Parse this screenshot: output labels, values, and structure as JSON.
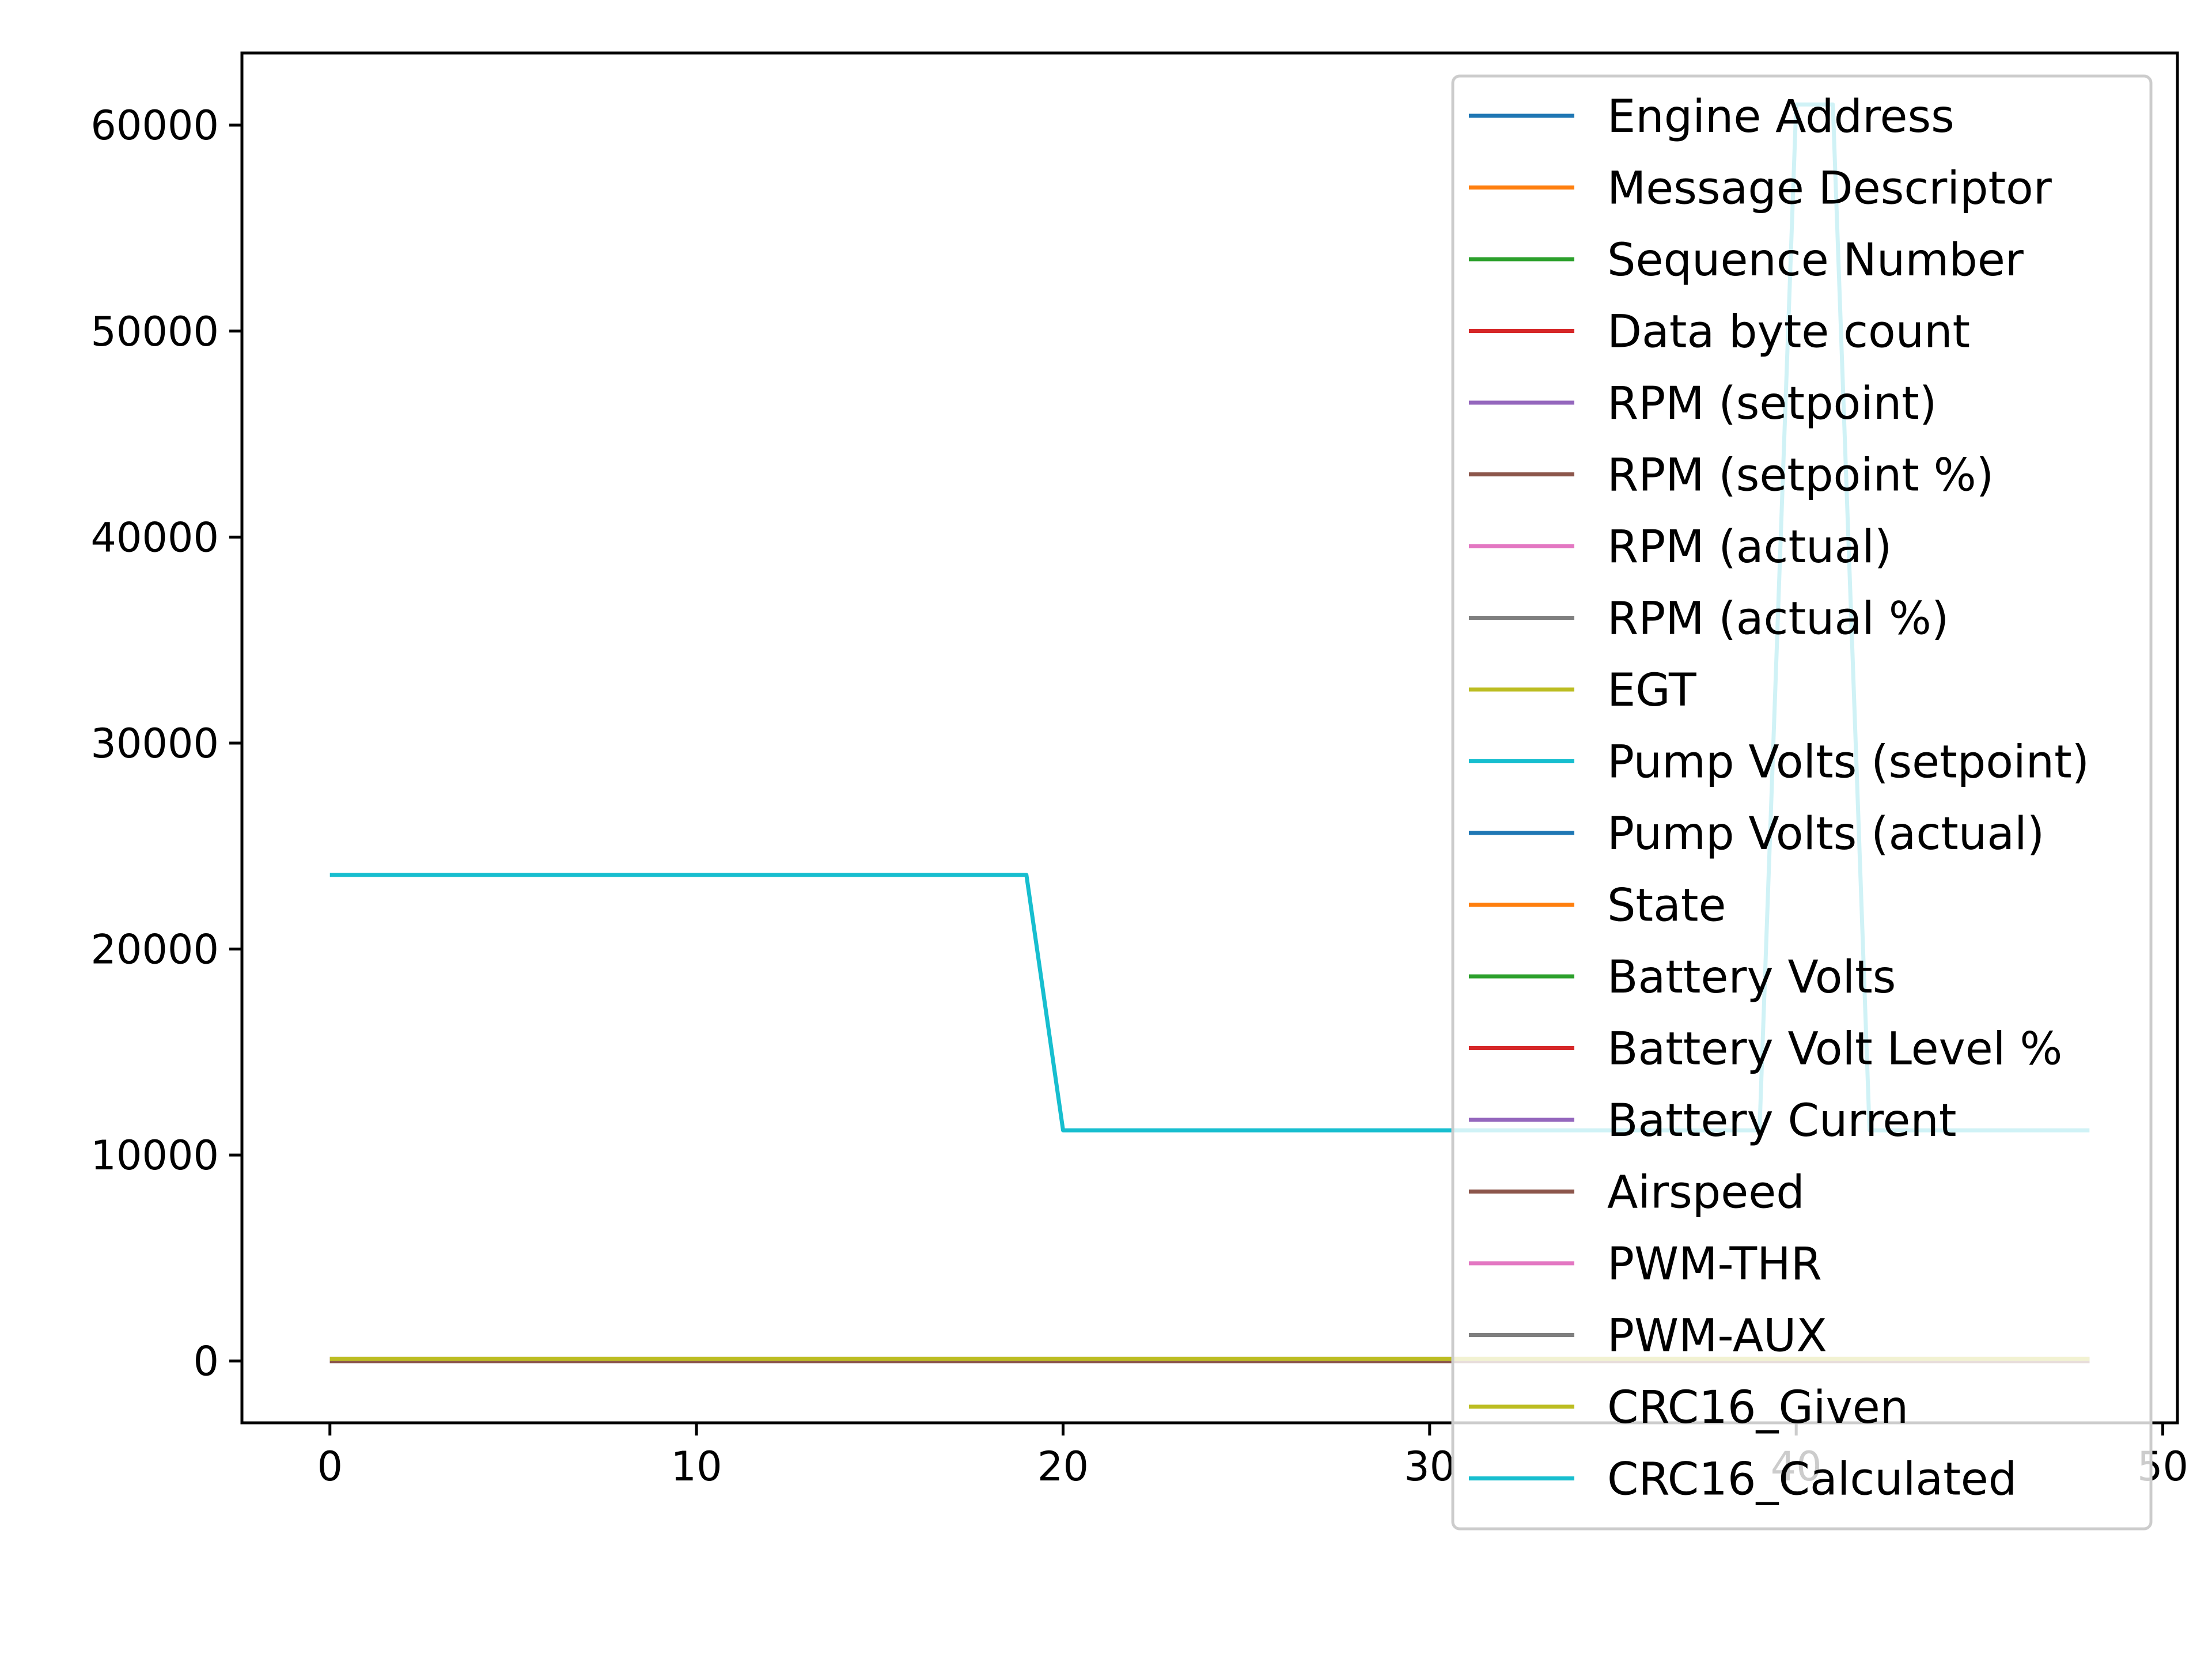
{
  "chart_data": {
    "type": "line",
    "title": "",
    "xlabel": "",
    "ylabel": "",
    "xlim": [
      -2.4,
      50.4
    ],
    "ylim": [
      -3000,
      63500
    ],
    "xticks": [
      0,
      10,
      20,
      30,
      40,
      50
    ],
    "yticks": [
      0,
      10000,
      20000,
      30000,
      40000,
      50000,
      60000
    ],
    "xtick_labels": [
      "0",
      "10",
      "20",
      "30",
      "40",
      "50"
    ],
    "ytick_labels": [
      "0",
      "10000",
      "20000",
      "30000",
      "40000",
      "50000",
      "60000"
    ],
    "grid": false,
    "legend_position": "upper right",
    "series": [
      {
        "name": "Engine Address",
        "color": "#1f77b4",
        "x": [
          0,
          48
        ],
        "y": [
          1,
          1
        ]
      },
      {
        "name": "Message Descriptor",
        "color": "#ff7f0e",
        "x": [
          0,
          48
        ],
        "y": [
          1,
          1
        ]
      },
      {
        "name": "Sequence Number",
        "color": "#2ca02c",
        "x": [
          0,
          48
        ],
        "y": [
          0,
          48
        ]
      },
      {
        "name": "Data byte count",
        "color": "#d62728",
        "x": [
          0,
          48
        ],
        "y": [
          30,
          30
        ]
      },
      {
        "name": "RPM (setpoint)",
        "color": "#9467bd",
        "x": [
          0,
          48
        ],
        "y": [
          0,
          0
        ]
      },
      {
        "name": "RPM (setpoint %)",
        "color": "#8c564b",
        "x": [
          0,
          48
        ],
        "y": [
          0,
          0
        ]
      },
      {
        "name": "RPM (actual)",
        "color": "#e377c2",
        "x": [
          0,
          48
        ],
        "y": [
          0,
          0
        ]
      },
      {
        "name": "RPM (actual %)",
        "color": "#7f7f7f",
        "x": [
          0,
          48
        ],
        "y": [
          0,
          0
        ]
      },
      {
        "name": "EGT",
        "color": "#bcbd22",
        "x": [
          0,
          48
        ],
        "y": [
          20,
          20
        ]
      },
      {
        "name": "Pump Volts (setpoint)",
        "color": "#17becf",
        "x": [
          0,
          48
        ],
        "y": [
          0,
          0
        ]
      },
      {
        "name": "Pump Volts (actual)",
        "color": "#1f77b4",
        "x": [
          0,
          48
        ],
        "y": [
          0,
          0
        ]
      },
      {
        "name": "State",
        "color": "#ff7f0e",
        "x": [
          0,
          48
        ],
        "y": [
          1,
          1
        ]
      },
      {
        "name": "Battery Volts",
        "color": "#2ca02c",
        "x": [
          0,
          48
        ],
        "y": [
          12,
          12
        ]
      },
      {
        "name": "Battery Volt Level %",
        "color": "#d62728",
        "x": [
          0,
          48
        ],
        "y": [
          100,
          100
        ]
      },
      {
        "name": "Battery Current",
        "color": "#9467bd",
        "x": [
          0,
          48
        ],
        "y": [
          0,
          0
        ]
      },
      {
        "name": "Airspeed",
        "color": "#8c564b",
        "x": [
          0,
          48
        ],
        "y": [
          0,
          0
        ]
      },
      {
        "name": "PWM-THR",
        "color": "#e377c2",
        "x": [
          0,
          48
        ],
        "y": [
          100,
          100
        ]
      },
      {
        "name": "PWM-AUX",
        "color": "#7f7f7f",
        "x": [
          0,
          48
        ],
        "y": [
          100,
          100
        ]
      },
      {
        "name": "CRC16_Given",
        "color": "#bcbd22",
        "x": [
          0,
          48
        ],
        "y": [
          100,
          100
        ]
      },
      {
        "name": "CRC16_Calculated",
        "color": "#17becf",
        "x": [
          0,
          19,
          20,
          39,
          40,
          41,
          42,
          48
        ],
        "y": [
          23600,
          23600,
          11200,
          11200,
          61000,
          61000,
          11200,
          11200
        ]
      }
    ]
  }
}
